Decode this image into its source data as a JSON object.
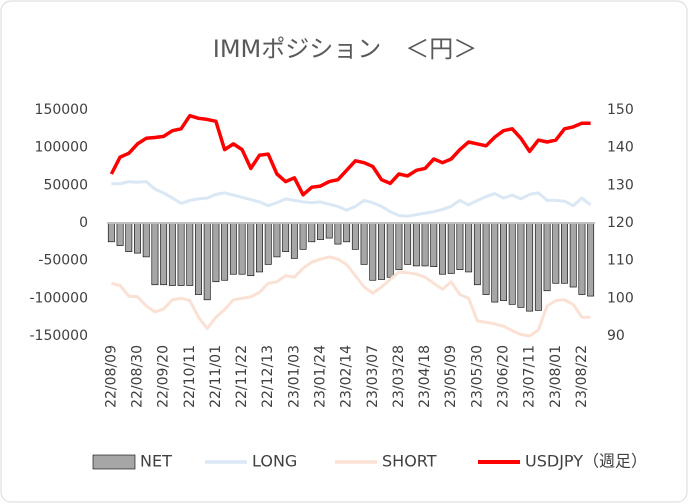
{
  "chart_data": {
    "type": "combo",
    "title": "IMMポジション　＜円＞",
    "categories": [
      "22/08/09",
      null,
      null,
      "22/08/30",
      null,
      null,
      "22/09/20",
      null,
      null,
      "22/10/11",
      null,
      null,
      "22/11/01",
      null,
      null,
      "22/11/22",
      null,
      null,
      "22/12/13",
      null,
      null,
      "23/01/03",
      null,
      null,
      "23/01/24",
      null,
      null,
      "23/02/14",
      null,
      null,
      "23/03/07",
      null,
      null,
      "23/03/28",
      null,
      null,
      "23/04/18",
      null,
      null,
      "23/05/09",
      null,
      null,
      "23/05/30",
      null,
      null,
      "23/06/20",
      null,
      null,
      "23/07/11",
      null,
      null,
      "23/08/01",
      null,
      null,
      "23/08/22",
      null
    ],
    "series": [
      {
        "name": "NET",
        "type": "bar",
        "color": "#a6a6a6",
        "values": [
          -25000,
          -30000,
          -38000,
          -40000,
          -45000,
          -82000,
          -82000,
          -83000,
          -83000,
          -83000,
          -95000,
          -102000,
          -78000,
          -76000,
          -68000,
          -68000,
          -70000,
          -65000,
          -55000,
          -45000,
          -38000,
          -47000,
          -35000,
          -25000,
          -22000,
          -20000,
          -28000,
          -25000,
          -35000,
          -55000,
          -76000,
          -75000,
          -72000,
          -62000,
          -55000,
          -57000,
          -57000,
          -58000,
          -68000,
          -67000,
          -62000,
          -65000,
          -82000,
          -95000,
          -105000,
          -103000,
          -108000,
          -112000,
          -117000,
          -116000,
          -90000,
          -80000,
          -80000,
          -85000,
          -95000,
          -97000
        ]
      },
      {
        "name": "LONG",
        "type": "line",
        "color": "#dae7f5",
        "values": [
          52000,
          52000,
          55000,
          54000,
          55000,
          45000,
          40000,
          33000,
          26000,
          30000,
          32000,
          33000,
          38000,
          40000,
          37000,
          34000,
          31000,
          28000,
          23000,
          27000,
          32000,
          30000,
          28000,
          27000,
          28000,
          25000,
          22000,
          17000,
          22000,
          30000,
          27000,
          22000,
          15000,
          10000,
          9000,
          11000,
          13000,
          15000,
          18000,
          22000,
          30000,
          24000,
          30000,
          35000,
          39000,
          33000,
          37000,
          32000,
          38000,
          40000,
          30000,
          30000,
          29000,
          23000,
          33000,
          24000
        ]
      },
      {
        "name": "SHORT",
        "type": "line",
        "color": "#fbe1d4",
        "values": [
          -80000,
          -83000,
          -97000,
          -98000,
          -110000,
          -118000,
          -114000,
          -102000,
          -100000,
          -103000,
          -125000,
          -140000,
          -125000,
          -115000,
          -102000,
          -100000,
          -98000,
          -92000,
          -80000,
          -78000,
          -70000,
          -72000,
          -60000,
          -52000,
          -48000,
          -45000,
          -48000,
          -55000,
          -70000,
          -85000,
          -93000,
          -85000,
          -75000,
          -65000,
          -66000,
          -68000,
          -72000,
          -80000,
          -88000,
          -78000,
          -95000,
          -100000,
          -130000,
          -132000,
          -134000,
          -137000,
          -143000,
          -148000,
          -150000,
          -142000,
          -110000,
          -103000,
          -102000,
          -108000,
          -125000,
          -125000
        ]
      },
      {
        "name": "USDJPY（週足）",
        "type": "line",
        "axis": "y2",
        "color": "#ff0000",
        "values": [
          133,
          137.5,
          138.5,
          141,
          142.5,
          142.7,
          143,
          144.5,
          145,
          148.5,
          147.8,
          147.5,
          147,
          139.5,
          141,
          139.5,
          134.5,
          138,
          138.3,
          133,
          131,
          132,
          127.5,
          129.5,
          129.8,
          131,
          131.5,
          134,
          136.5,
          136,
          135,
          131.5,
          130.5,
          133,
          132.5,
          134,
          134.5,
          137,
          136,
          137,
          139.5,
          141.5,
          141,
          140.5,
          142.8,
          144.5,
          145,
          142.5,
          139,
          142,
          141.5,
          142,
          145,
          145.5,
          146.5,
          146.5
        ]
      }
    ],
    "ylim": [
      -150000,
      150000
    ],
    "yticks": [
      -150000,
      -100000,
      -50000,
      0,
      50000,
      100000,
      150000
    ],
    "y2lim": [
      90,
      150
    ],
    "y2ticks": [
      90,
      100,
      110,
      120,
      130,
      140,
      150
    ],
    "grid": false,
    "legend": "bottom"
  }
}
